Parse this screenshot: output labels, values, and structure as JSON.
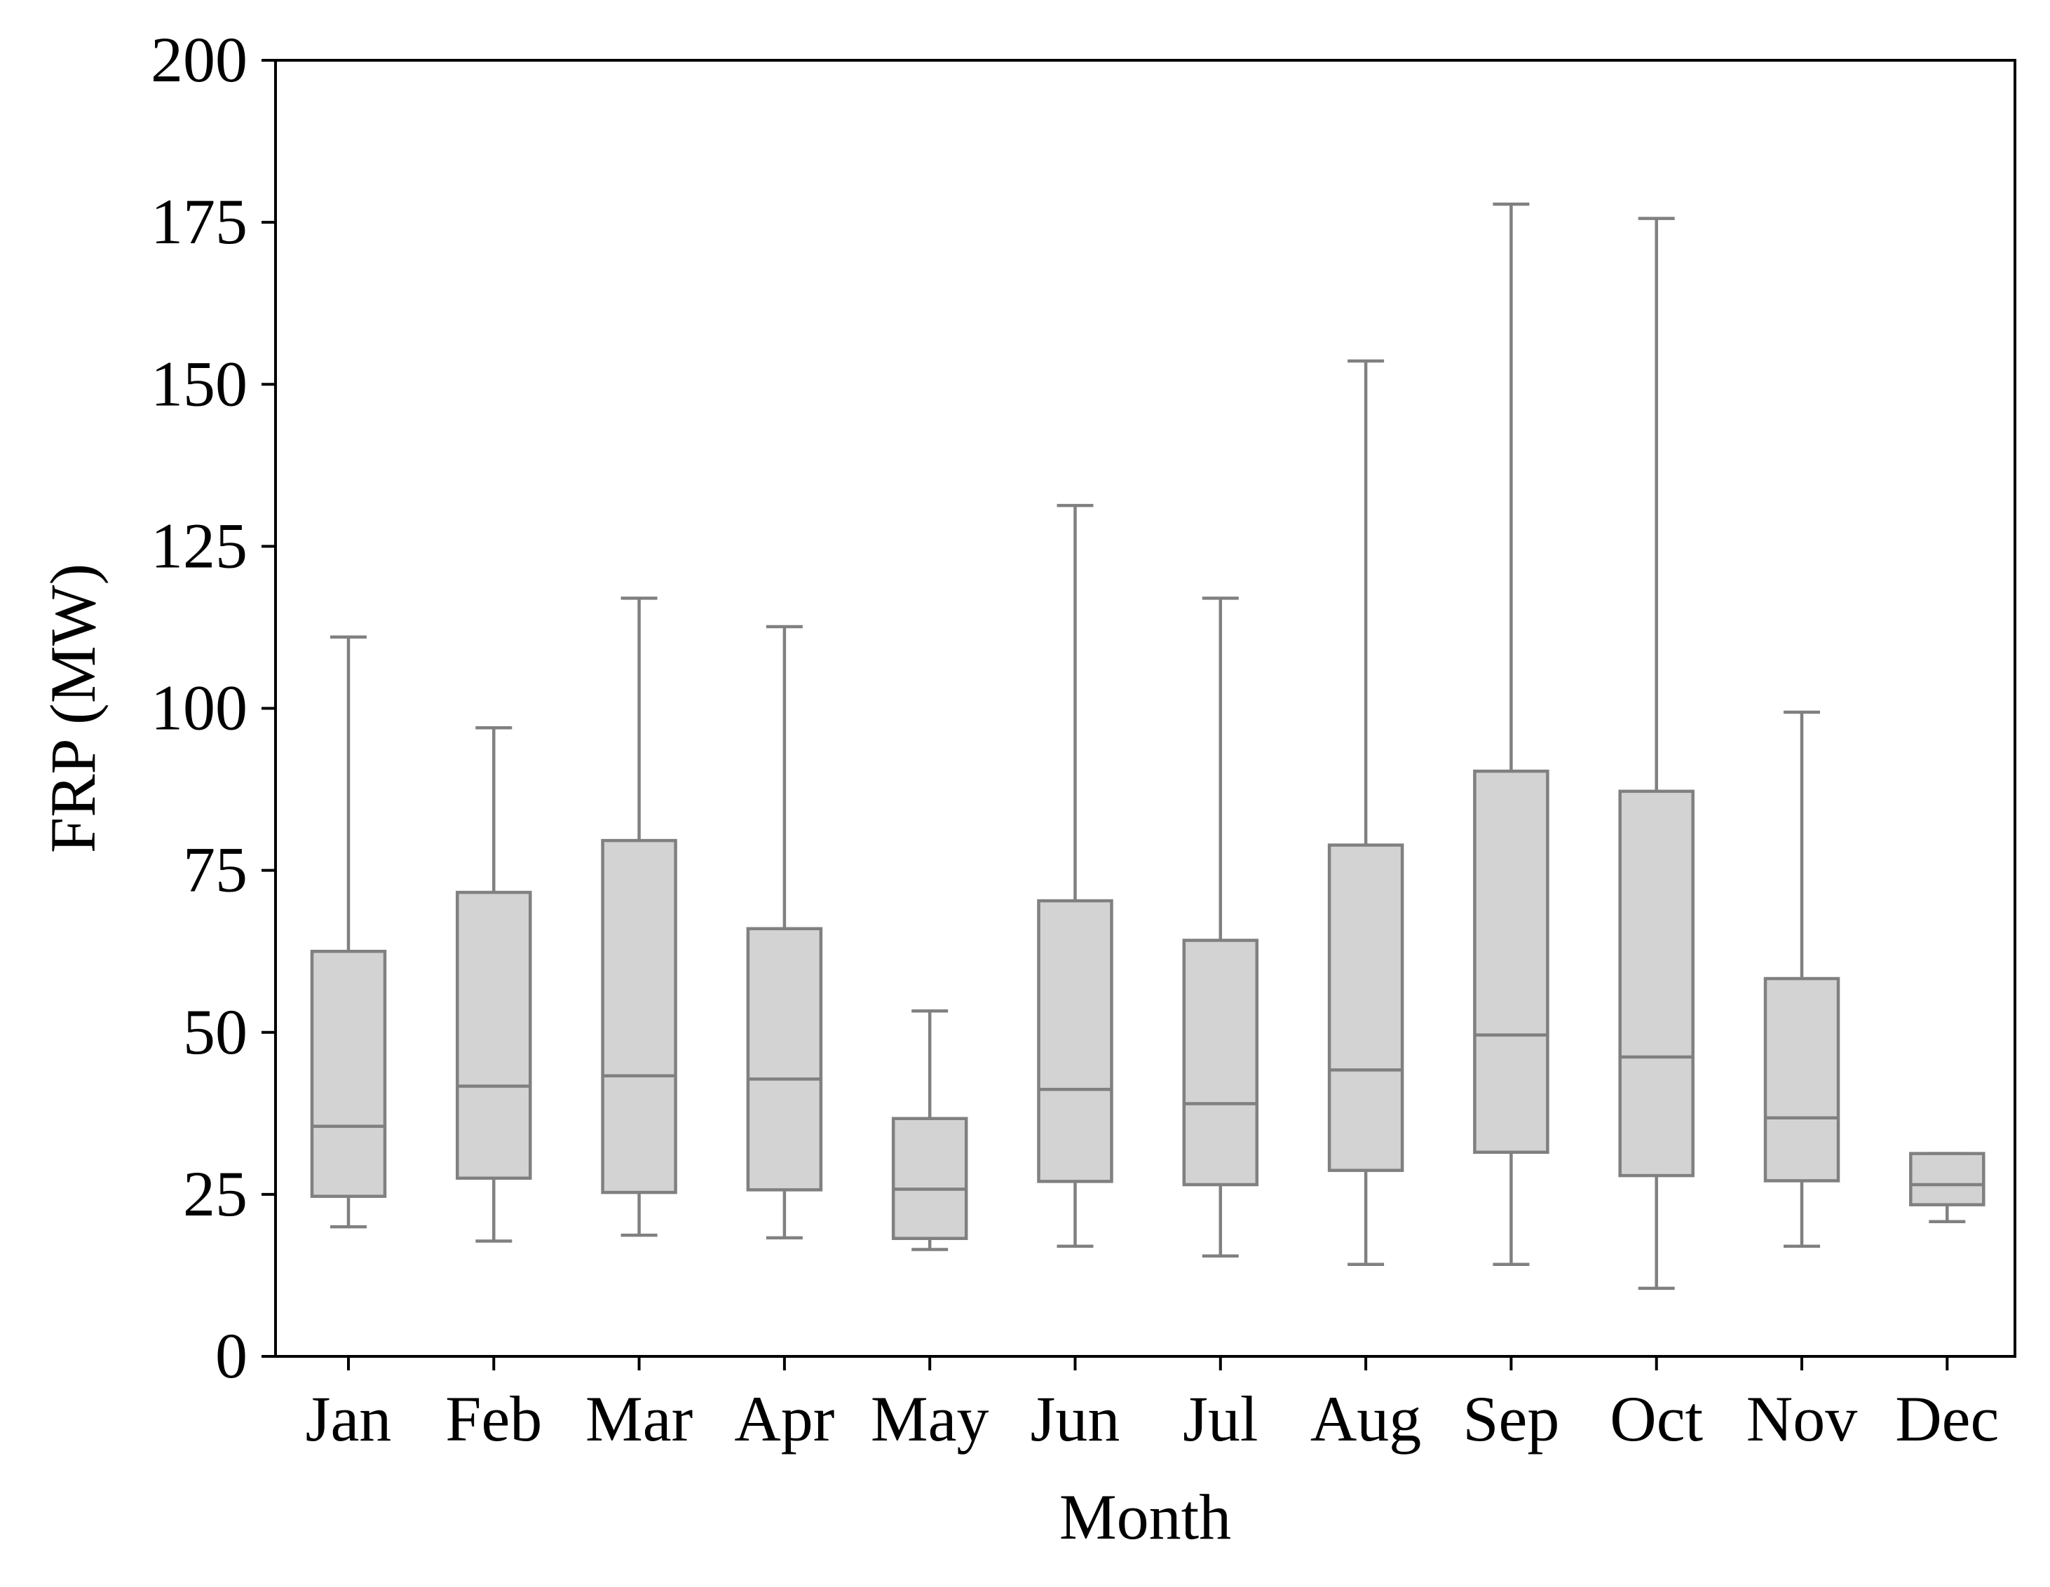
{
  "chart_data": {
    "type": "box",
    "title": "",
    "xlabel": "Month",
    "ylabel": "FRP (MW)",
    "ylim": [
      0,
      200
    ],
    "yticks": [
      0,
      25,
      50,
      75,
      100,
      125,
      150,
      175,
      200
    ],
    "grid": false,
    "legend": "none",
    "colors": {
      "box_fill": "#d3d3d3",
      "box_stroke": "#808080",
      "axis": "#000000"
    },
    "categories": [
      "Jan",
      "Feb",
      "Mar",
      "Apr",
      "May",
      "Jun",
      "Jul",
      "Aug",
      "Sep",
      "Oct",
      "Nov",
      "Dec"
    ],
    "boxes": [
      {
        "month": "Jan",
        "whisker_low": 20,
        "q1": 24.7,
        "median": 35.5,
        "q3": 62.5,
        "whisker_high": 111
      },
      {
        "month": "Feb",
        "whisker_low": 17.8,
        "q1": 27.5,
        "median": 41.7,
        "q3": 71.6,
        "whisker_high": 97
      },
      {
        "month": "Mar",
        "whisker_low": 18.7,
        "q1": 25.3,
        "median": 43.3,
        "q3": 79.6,
        "whisker_high": 117
      },
      {
        "month": "Apr",
        "whisker_low": 18.3,
        "q1": 25.7,
        "median": 42.8,
        "q3": 66,
        "whisker_high": 112.6
      },
      {
        "month": "May",
        "whisker_low": 16.5,
        "q1": 18.2,
        "median": 25.8,
        "q3": 36.7,
        "whisker_high": 53.3
      },
      {
        "month": "Jun",
        "whisker_low": 17,
        "q1": 27,
        "median": 41.2,
        "q3": 70.3,
        "whisker_high": 131.3
      },
      {
        "month": "Jul",
        "whisker_low": 15.5,
        "q1": 26.5,
        "median": 39,
        "q3": 64.2,
        "whisker_high": 117
      },
      {
        "month": "Aug",
        "whisker_low": 14.2,
        "q1": 28.7,
        "median": 44.2,
        "q3": 78.9,
        "whisker_high": 153.6
      },
      {
        "month": "Sep",
        "whisker_low": 14.2,
        "q1": 31.5,
        "median": 49.6,
        "q3": 90.3,
        "whisker_high": 177.8
      },
      {
        "month": "Oct",
        "whisker_low": 10.5,
        "q1": 27.9,
        "median": 46.2,
        "q3": 87.2,
        "whisker_high": 175.6
      },
      {
        "month": "Nov",
        "whisker_low": 17,
        "q1": 27.1,
        "median": 36.8,
        "q3": 58.3,
        "whisker_high": 99.4
      },
      {
        "month": "Dec",
        "whisker_low": 20.8,
        "q1": 23.4,
        "median": 26.5,
        "q3": 31.3,
        "whisker_high": 31.3
      }
    ]
  }
}
